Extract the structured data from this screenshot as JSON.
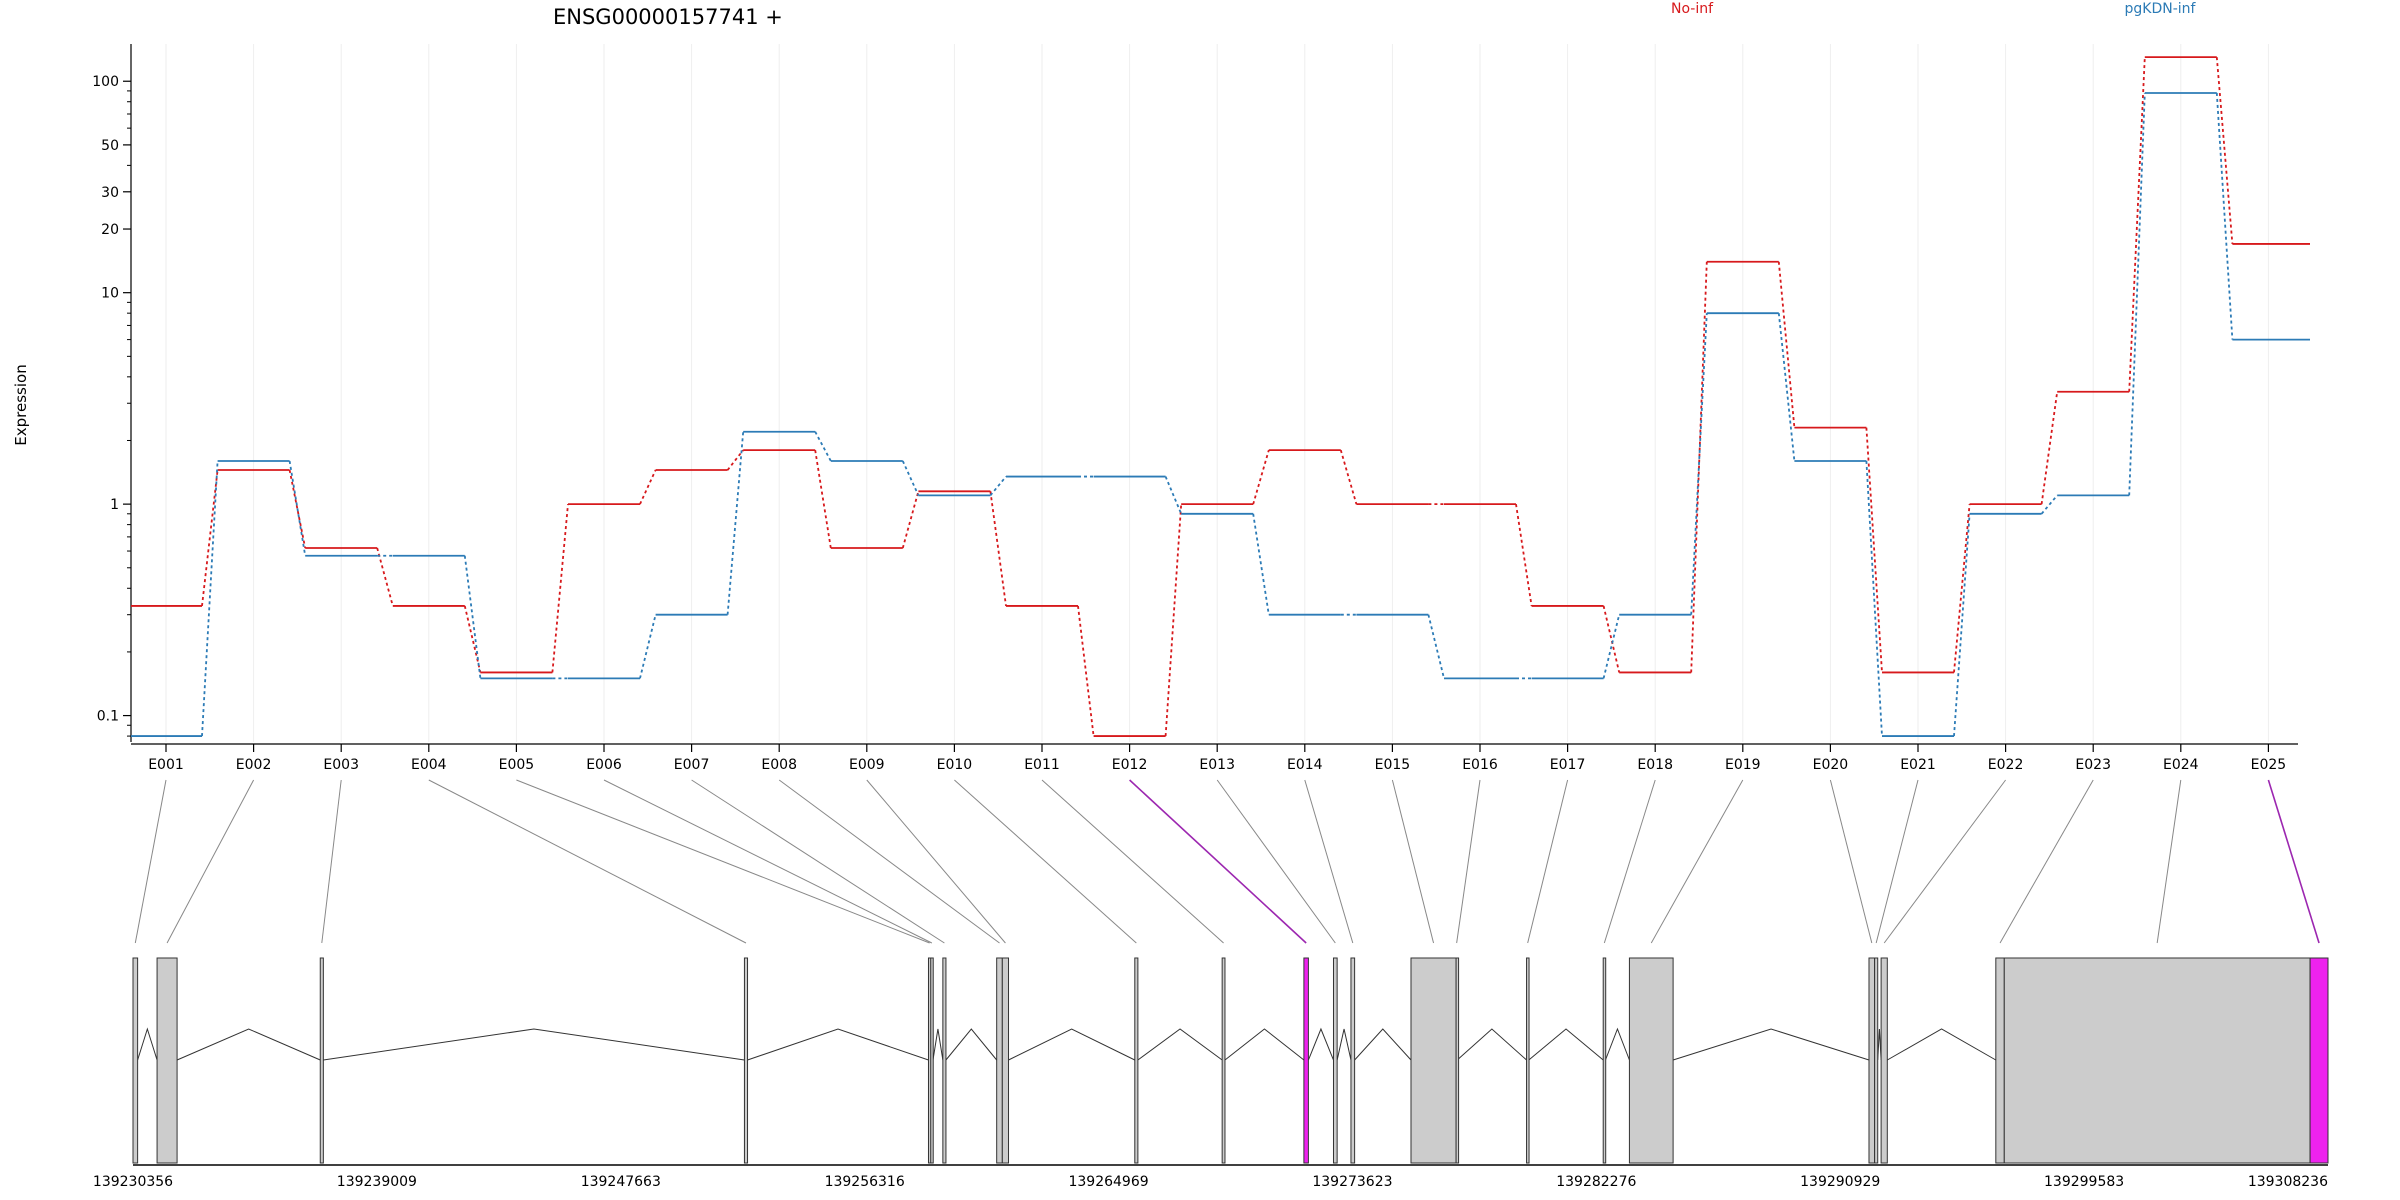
{
  "chart_data": {
    "type": "line",
    "title": "ENSG00000157741 +",
    "ylabel": "Expression",
    "xlabel": "",
    "y_scale": "log",
    "ylim": [
      0.075,
      150
    ],
    "y_ticks": [
      0.1,
      1,
      10,
      20,
      30,
      50,
      100
    ],
    "y_tick_labels": [
      "0.1",
      "1",
      "10",
      "20",
      "30",
      "50",
      "100"
    ],
    "grid": "vertical-light",
    "legend_placement": "top",
    "categories": [
      "E001",
      "E002",
      "E003",
      "E004",
      "E005",
      "E006",
      "E007",
      "E008",
      "E009",
      "E010",
      "E011",
      "E012",
      "E013",
      "E014",
      "E015",
      "E016",
      "E017",
      "E018",
      "E019",
      "E020",
      "E021",
      "E022",
      "E023",
      "E024",
      "E025"
    ],
    "series": [
      {
        "name": "No-inf",
        "color": "#d7191c",
        "values": [
          0.33,
          1.45,
          0.62,
          0.33,
          0.16,
          1.0,
          1.45,
          1.8,
          0.62,
          1.15,
          0.33,
          0.08,
          1.0,
          1.8,
          1.0,
          1.0,
          0.33,
          0.16,
          14.0,
          2.3,
          0.16,
          1.0,
          3.4,
          130.0,
          17.0
        ]
      },
      {
        "name": "pgKDN-inf",
        "color": "#2c7bb6",
        "values": [
          0.08,
          1.6,
          0.57,
          0.57,
          0.15,
          0.15,
          0.3,
          2.2,
          1.6,
          1.1,
          1.35,
          1.35,
          0.9,
          0.3,
          0.3,
          0.15,
          0.15,
          0.3,
          8.0,
          1.6,
          0.08,
          0.9,
          1.1,
          88.0,
          6.0
        ]
      }
    ],
    "gene_model": {
      "coordinate_labels": [
        "139230356",
        "139239009",
        "139247663",
        "139256316",
        "139264969",
        "139273623",
        "139282276",
        "139290929",
        "139299583",
        "139308236"
      ],
      "coordinate_range": [
        139230356,
        139308236
      ],
      "highlight_color": "#ee22ee",
      "exon_fill": "#cccccc",
      "exons": [
        {
          "id": "E001",
          "start": 139230356,
          "end": 139230520,
          "hl": false
        },
        {
          "id": "E002",
          "start": 139231210,
          "end": 139231920,
          "hl": false
        },
        {
          "id": "E003",
          "start": 139237000,
          "end": 139237110,
          "hl": false
        },
        {
          "id": "E004",
          "start": 139252050,
          "end": 139252160,
          "hl": false
        },
        {
          "id": "E005",
          "start": 139258580,
          "end": 139258660,
          "hl": false
        },
        {
          "id": "E006",
          "start": 139258660,
          "end": 139258740,
          "hl": false
        },
        {
          "id": "E007",
          "start": 139259090,
          "end": 139259200,
          "hl": false
        },
        {
          "id": "E008",
          "start": 139261000,
          "end": 139261200,
          "hl": false
        },
        {
          "id": "E009",
          "start": 139261200,
          "end": 139261420,
          "hl": false
        },
        {
          "id": "E010",
          "start": 139265900,
          "end": 139266010,
          "hl": false
        },
        {
          "id": "E011",
          "start": 139269000,
          "end": 139269100,
          "hl": false
        },
        {
          "id": "E012",
          "start": 139271900,
          "end": 139272060,
          "hl": true
        },
        {
          "id": "E013",
          "start": 139272950,
          "end": 139273080,
          "hl": false
        },
        {
          "id": "E014",
          "start": 139273570,
          "end": 139273700,
          "hl": false
        },
        {
          "id": "E015",
          "start": 139275700,
          "end": 139277300,
          "hl": false
        },
        {
          "id": "E016",
          "start": 139277300,
          "end": 139277340,
          "hl": false
        },
        {
          "id": "E017",
          "start": 139279800,
          "end": 139279880,
          "hl": false
        },
        {
          "id": "E018",
          "start": 139282520,
          "end": 139282600,
          "hl": false
        },
        {
          "id": "E019",
          "start": 139283450,
          "end": 139285000,
          "hl": false
        },
        {
          "id": "E020",
          "start": 139291950,
          "end": 139292150,
          "hl": false
        },
        {
          "id": "E021",
          "start": 139292150,
          "end": 139292260,
          "hl": false
        },
        {
          "id": "E022",
          "start": 139292380,
          "end": 139292600,
          "hl": false
        },
        {
          "id": "E023",
          "start": 139296450,
          "end": 139296750,
          "hl": false
        },
        {
          "id": "E024",
          "start": 139296750,
          "end": 139307600,
          "hl": false
        },
        {
          "id": "E025",
          "start": 139307600,
          "end": 139308236,
          "hl": true
        }
      ]
    }
  }
}
